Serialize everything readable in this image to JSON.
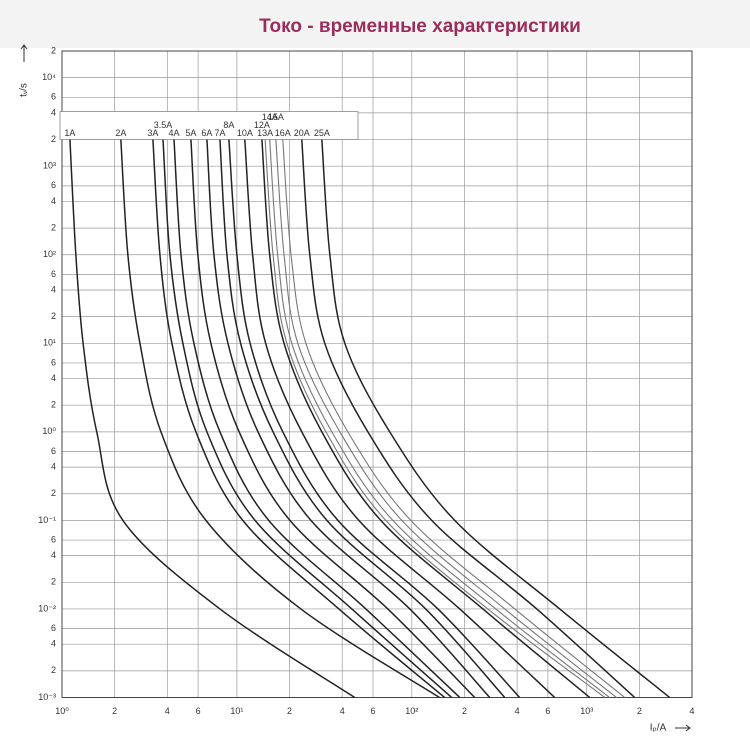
{
  "chart_data": {
    "type": "line",
    "title": "Токо - временные характеристики",
    "ylabel": "tᵥ/s",
    "xlabel": "Iₚ/A",
    "xscale": "log",
    "yscale": "log",
    "grid": true,
    "xlim": [
      1,
      4000
    ],
    "ylim": [
      0.001,
      20000
    ],
    "xticks": [
      {
        "value": 1,
        "label": "10⁰"
      },
      2,
      4,
      6,
      {
        "value": 10,
        "label": "10¹"
      },
      {
        "value": 20,
        "label": "2"
      },
      {
        "value": 40,
        "label": "4"
      },
      {
        "value": 60,
        "label": "6"
      },
      {
        "value": 100,
        "label": "10²"
      },
      {
        "value": 200,
        "label": "2"
      },
      {
        "value": 400,
        "label": "4"
      },
      {
        "value": 600,
        "label": "6"
      },
      {
        "value": 1000,
        "label": "10³"
      },
      {
        "value": 2000,
        "label": "2"
      },
      {
        "value": 4000,
        "label": "4"
      }
    ],
    "yticks": [
      {
        "value": 0.001,
        "label": "10⁻³"
      },
      {
        "value": 0.002,
        "label": "2"
      },
      {
        "value": 0.004,
        "label": "4"
      },
      {
        "value": 0.006,
        "label": "6"
      },
      {
        "value": 0.01,
        "label": "10⁻²"
      },
      {
        "value": 0.02,
        "label": "2"
      },
      {
        "value": 0.04,
        "label": "4"
      },
      {
        "value": 0.06,
        "label": "6"
      },
      {
        "value": 0.1,
        "label": "10⁻¹"
      },
      {
        "value": 0.2,
        "label": "2"
      },
      {
        "value": 0.4,
        "label": "4"
      },
      {
        "value": 0.6,
        "label": "6"
      },
      {
        "value": 1,
        "label": "10⁰"
      },
      2,
      4,
      6,
      {
        "value": 10,
        "label": "10¹"
      },
      {
        "value": 20,
        "label": "2"
      },
      {
        "value": 40,
        "label": "4"
      },
      {
        "value": 60,
        "label": "6"
      },
      {
        "value": 100,
        "label": "10²"
      },
      {
        "value": 200,
        "label": "2"
      },
      {
        "value": 400,
        "label": "4"
      },
      {
        "value": 600,
        "label": "6"
      },
      {
        "value": 1000,
        "label": "10³"
      },
      {
        "value": 2000,
        "label": "2"
      },
      {
        "value": 4000,
        "label": "4"
      },
      {
        "value": 6000,
        "label": "6"
      },
      {
        "value": 10000,
        "label": "10⁴"
      },
      {
        "value": 20000,
        "label": "2"
      }
    ],
    "series": [
      {
        "name": "1A",
        "color": "#222222",
        "x": [
          1.11,
          1.2,
          1.32,
          1.58,
          2.23,
          8.0,
          47.2
        ],
        "values": [
          2000,
          100,
          10,
          1,
          0.1,
          0.01,
          0.001
        ]
      },
      {
        "name": "2A",
        "color": "#222222",
        "x": [
          2.17,
          2.38,
          2.79,
          3.68,
          6.65,
          23.2,
          144
        ],
        "values": [
          2000,
          100,
          10,
          1,
          0.1,
          0.01,
          0.001
        ]
      },
      {
        "name": "3A",
        "color": "#222222",
        "x": [
          3.31,
          3.63,
          4.25,
          5.83,
          10.8,
          38.3,
          154
        ],
        "values": [
          2000,
          100,
          10,
          1,
          0.1,
          0.01,
          0.001
        ]
      },
      {
        "name": "3.5A",
        "color": "#222222",
        "x": [
          3.78,
          4.14,
          4.91,
          6.74,
          12.7,
          45.4,
          169
        ],
        "values": [
          2000,
          100,
          10,
          1,
          0.1,
          0.01,
          0.001
        ]
      },
      {
        "name": "4A",
        "color": "#222222",
        "x": [
          4.37,
          4.79,
          5.68,
          8.0,
          15.2,
          54.6,
          188
        ],
        "values": [
          2000,
          100,
          10,
          1,
          0.1,
          0.01,
          0.001
        ]
      },
      {
        "name": "5A",
        "color": "#222222",
        "x": [
          5.46,
          5.98,
          7.1,
          10.3,
          20.1,
          72.9,
          229
        ],
        "values": [
          2000,
          100,
          10,
          1,
          0.1,
          0.01,
          0.001
        ]
      },
      {
        "name": "6A",
        "color": "#222222",
        "x": [
          6.74,
          7.39,
          8.89,
          13.2,
          26.5,
          97.4,
          279
        ],
        "values": [
          2000,
          100,
          10,
          1,
          0.1,
          0.01,
          0.001
        ]
      },
      {
        "name": "7A",
        "color": "#222222",
        "x": [
          8.0,
          8.77,
          10.5,
          16.1,
          32.7,
          120,
          340
        ],
        "values": [
          2000,
          100,
          10,
          1,
          0.1,
          0.01,
          0.001
        ]
      },
      {
        "name": "8A",
        "color": "#222222",
        "x": [
          9.0,
          10.0,
          11.9,
          18.3,
          37.8,
          141,
          414
        ],
        "values": [
          2000,
          100,
          10,
          1,
          0.1,
          0.01,
          0.001
        ]
      },
      {
        "name": "10A",
        "color": "#222222",
        "x": [
          11.1,
          12.3,
          14.6,
          23.5,
          49.8,
          188,
          656
        ],
        "values": [
          2000,
          100,
          10,
          1,
          0.1,
          0.01,
          0.001
        ]
      },
      {
        "name": "12A",
        "color": "#222222",
        "x": [
          13.9,
          15.4,
          18.6,
          30.6,
          66.5,
          255,
          1040
        ],
        "values": [
          2000,
          100,
          10,
          1,
          0.1,
          0.01,
          0.001
        ]
      },
      {
        "name": "13A",
        "color": "#777777",
        "x": [
          14.5,
          16.1,
          19.3,
          32.3,
          71.0,
          272,
          1270
        ],
        "values": [
          2000,
          100,
          10,
          1,
          0.1,
          0.01,
          0.001
        ]
      },
      {
        "name": "14A",
        "color": "#777777",
        "x": [
          15.4,
          17.1,
          20.6,
          34.9,
          77.9,
          302,
          1350
        ],
        "values": [
          2000,
          100,
          10,
          1,
          0.1,
          0.01,
          0.001
        ]
      },
      {
        "name": "15A",
        "color": "#777777",
        "x": [
          16.7,
          18.6,
          22.3,
          38.8,
          87.7,
          340,
          1480
        ],
        "values": [
          2000,
          100,
          10,
          1,
          0.1,
          0.01,
          0.001
        ]
      },
      {
        "name": "16A",
        "color": "#777777",
        "x": [
          18.3,
          20.4,
          24.8,
          43.1,
          98.7,
          388,
          1650
        ],
        "values": [
          2000,
          100,
          10,
          1,
          0.1,
          0.01,
          0.001
        ]
      },
      {
        "name": "20A",
        "color": "#222222",
        "x": [
          23.5,
          26.1,
          31.8,
          56.1,
          130,
          518,
          1880
        ],
        "values": [
          2000,
          100,
          10,
          1,
          0.1,
          0.01,
          0.001
        ]
      },
      {
        "name": "25A",
        "color": "#222222",
        "x": [
          30.6,
          34.0,
          41.4,
          74.8,
          176,
          701,
          2980
        ],
        "values": [
          2000,
          100,
          10,
          1,
          0.1,
          0.01,
          0.001
        ]
      }
    ]
  }
}
